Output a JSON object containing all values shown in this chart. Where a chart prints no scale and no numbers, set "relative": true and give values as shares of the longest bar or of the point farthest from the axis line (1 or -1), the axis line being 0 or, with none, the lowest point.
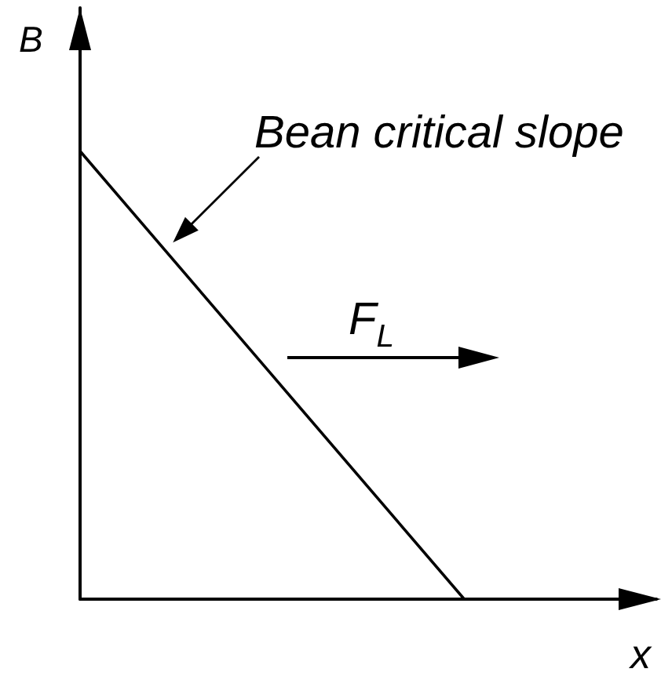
{
  "chart_data": {
    "type": "line",
    "xlabel": "x",
    "ylabel": "B",
    "annotations": [
      "Bean critical slope",
      "F$_{L}$"
    ],
    "categories": [
      null,
      null,
      null,
      null
    ],
    "series": [
      {
        "color": "#000000",
        "values": [
          1,
          0.5,
          0,
          null
        ]
      }
    ],
    "relative": true,
    "marker": "none"
  }
}
